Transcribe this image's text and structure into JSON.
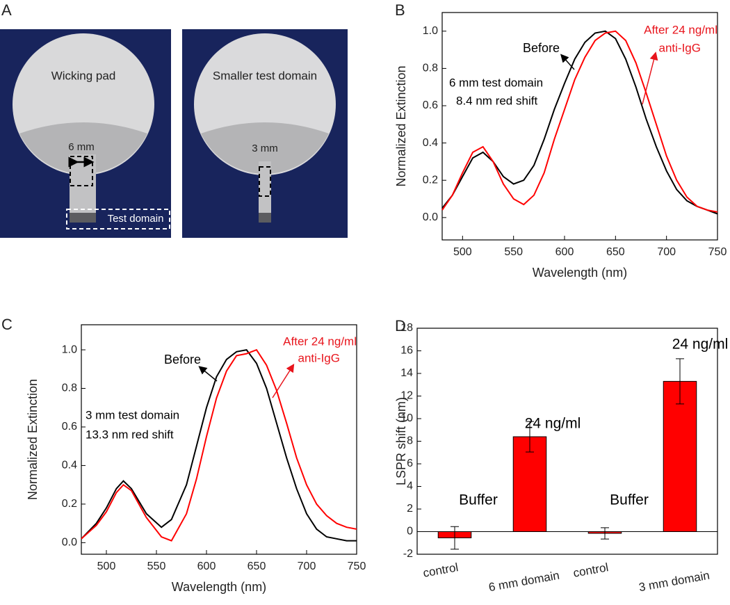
{
  "panel_a": {
    "panel_label": "A",
    "texts": [
      "Wicking pad",
      "6 mm",
      "Test domain",
      "Smaller test domain",
      "3 mm"
    ]
  },
  "chart_data": [
    {
      "type": "line",
      "panel_label": "B",
      "xlabel": "Wavelength (nm)",
      "ylabel": "Normalized Extinction",
      "x": [
        480,
        490,
        500,
        510,
        520,
        530,
        540,
        550,
        560,
        570,
        580,
        590,
        600,
        610,
        620,
        630,
        640,
        650,
        660,
        670,
        680,
        690,
        700,
        710,
        720,
        730,
        740,
        750
      ],
      "series": [
        {
          "name": "Before",
          "color": "#000000",
          "values": [
            0.05,
            0.12,
            0.22,
            0.32,
            0.35,
            0.3,
            0.22,
            0.18,
            0.2,
            0.28,
            0.42,
            0.58,
            0.72,
            0.85,
            0.94,
            0.99,
            1.0,
            0.96,
            0.85,
            0.7,
            0.53,
            0.38,
            0.25,
            0.15,
            0.09,
            0.06,
            0.04,
            0.02
          ]
        },
        {
          "name": "After 24 ng/ml anti-IgG",
          "color": "#ff0000",
          "values": [
            0.04,
            0.12,
            0.24,
            0.35,
            0.38,
            0.3,
            0.18,
            0.1,
            0.07,
            0.12,
            0.24,
            0.42,
            0.58,
            0.74,
            0.86,
            0.95,
            0.99,
            1.0,
            0.95,
            0.83,
            0.67,
            0.5,
            0.33,
            0.2,
            0.11,
            0.06,
            0.04,
            0.03
          ]
        }
      ],
      "xlim": [
        480,
        750
      ],
      "xticks": [
        500,
        550,
        600,
        650,
        700,
        750
      ],
      "ylim": [
        -0.12,
        1.1
      ],
      "yticks": [
        {
          "value": 0,
          "label": "0.0"
        },
        0.2,
        0.4,
        0.6,
        0.8,
        {
          "value": 1,
          "label": "1.0"
        }
      ],
      "annotations": [
        {
          "text": "Before",
          "color": "#000000"
        },
        {
          "text": "After 24 ng/ml",
          "color": "#e8141c"
        },
        {
          "text": "anti-IgG",
          "color": "#e8141c"
        },
        {
          "text": "6 mm test domain",
          "color": "#000000"
        },
        {
          "text": "8.4 nm red shift",
          "color": "#000000"
        }
      ]
    },
    {
      "type": "line",
      "panel_label": "C",
      "xlabel": "Wavelength (nm)",
      "ylabel": "Normalized Extinction",
      "x": [
        475,
        490,
        500,
        510,
        517,
        525,
        540,
        555,
        565,
        580,
        590,
        600,
        610,
        620,
        630,
        640,
        650,
        660,
        670,
        680,
        690,
        700,
        710,
        720,
        730,
        740,
        750
      ],
      "series": [
        {
          "name": "Before",
          "color": "#000000",
          "values": [
            0.02,
            0.1,
            0.18,
            0.28,
            0.32,
            0.28,
            0.15,
            0.08,
            0.12,
            0.3,
            0.5,
            0.7,
            0.86,
            0.95,
            0.99,
            1.0,
            0.93,
            0.8,
            0.62,
            0.44,
            0.28,
            0.15,
            0.07,
            0.03,
            0.02,
            0.01,
            0.01
          ]
        },
        {
          "name": "After 24 ng/ml anti-IgG",
          "color": "#ff0000",
          "values": [
            0.02,
            0.09,
            0.16,
            0.26,
            0.3,
            0.27,
            0.13,
            0.03,
            0.01,
            0.15,
            0.33,
            0.55,
            0.75,
            0.89,
            0.97,
            0.98,
            1.0,
            0.92,
            0.79,
            0.62,
            0.44,
            0.3,
            0.2,
            0.14,
            0.1,
            0.08,
            0.07
          ]
        }
      ],
      "xlim": [
        475,
        750
      ],
      "xticks": [
        500,
        550,
        600,
        650,
        700,
        750
      ],
      "ylim": [
        -0.06,
        1.13
      ],
      "yticks": [
        {
          "value": 0,
          "label": "0.0"
        },
        0.2,
        0.4,
        0.6,
        0.8,
        {
          "value": 1,
          "label": "1.0"
        }
      ],
      "annotations": [
        {
          "text": "Before",
          "color": "#000000"
        },
        {
          "text": "After 24 ng/ml",
          "color": "#e8141c"
        },
        {
          "text": "anti-IgG",
          "color": "#e8141c"
        },
        {
          "text": "3 mm test domain",
          "color": "#000000"
        },
        {
          "text": "13.3 nm red shift",
          "color": "#000000"
        }
      ]
    },
    {
      "type": "bar",
      "panel_label": "D",
      "ylabel": "LSPR shift (nm)",
      "categories": [
        "control",
        "6 mm domain",
        "control",
        "3 mm domain"
      ],
      "values": [
        -0.55,
        8.4,
        -0.15,
        13.3
      ],
      "errors": [
        1.0,
        1.35,
        0.5,
        2.0
      ],
      "color": "#ff0000",
      "ylim": [
        -2,
        18
      ],
      "yticks": [
        -2,
        0,
        2,
        4,
        6,
        8,
        10,
        12,
        14,
        16,
        18
      ],
      "annotations": [
        {
          "text": "Buffer",
          "color": "#000000"
        },
        {
          "text": "24 ng/ml",
          "color": "#000000"
        },
        {
          "text": "Buffer",
          "color": "#000000"
        },
        {
          "text": "24 ng/ml",
          "color": "#000000"
        }
      ]
    }
  ]
}
